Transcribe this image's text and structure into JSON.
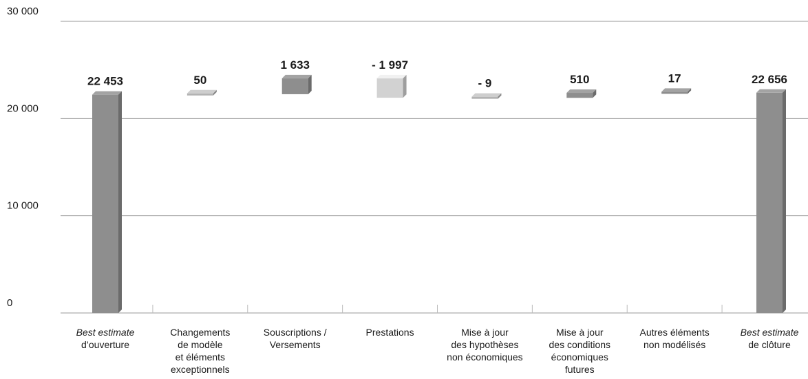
{
  "chart_data": {
    "type": "waterfall",
    "categories": [
      [
        "Best estimate",
        "d’ouverture"
      ],
      [
        "Changements",
        "de modèle",
        "et éléments",
        "exceptionnels"
      ],
      [
        "Souscriptions /",
        "Versements"
      ],
      [
        "Prestations"
      ],
      [
        "Mise à jour",
        "des hypothèses",
        "non économiques"
      ],
      [
        "Mise à jour",
        "des conditions",
        "économiques",
        "futures"
      ],
      [
        "Autres éléments",
        "non modélisés"
      ],
      [
        "Best estimate",
        "de clôture"
      ]
    ],
    "measure": [
      "absolute",
      "relative",
      "relative",
      "relative",
      "relative",
      "relative",
      "relative",
      "absolute"
    ],
    "values": [
      22453,
      50,
      1633,
      -1997,
      -9,
      510,
      17,
      22656
    ],
    "value_labels": [
      "22 453",
      "50",
      "1 633",
      "- 1 997",
      "- 9",
      "510",
      "17",
      "22 656"
    ],
    "colors": [
      "#8e8e8e",
      "#b3b3b3",
      "#8e8e8e",
      "#d2d2d2",
      "#b3b3b3",
      "#8e8e8e",
      "#8e8e8e",
      "#8e8e8e"
    ],
    "ylim": [
      0,
      30000
    ],
    "yticks": [
      0,
      {
        "value": 10000,
        "label": "10 000"
      },
      {
        "value": 20000,
        "label": "20 000"
      },
      {
        "value": 30000,
        "label": "30 000"
      }
    ],
    "grid": true
  }
}
